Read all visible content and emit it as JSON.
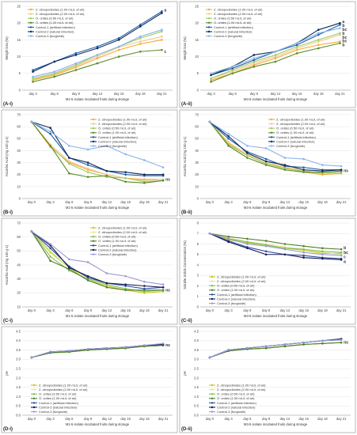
{
  "chart_data": [
    {
      "panel": "A-i",
      "type": "line",
      "xlabel": "M1-5 isolate incubated fruits during storage",
      "ylabel": "Weight loss (%)",
      "categories": [
        "day 3",
        "day 6",
        "day 9",
        "day 12",
        "day 15",
        "day 18",
        "day 21"
      ],
      "ylim": [
        0,
        25
      ],
      "yticks": [
        0,
        5,
        10,
        15,
        20,
        25
      ],
      "grid": true,
      "legend": "top-left",
      "series": [
        {
          "name": "Z. clinopodioides (1.00 mL/L of air)",
          "color": "#f7a832",
          "values": [
            3.0,
            4.5,
            6.8,
            9.5,
            12.0,
            13.8,
            15.0
          ]
        },
        {
          "name": "Z. clinopodioides (2.00 mL/L of air)",
          "color": "#f0c98b",
          "values": [
            3.2,
            4.8,
            7.2,
            10.0,
            12.8,
            14.5,
            16.0
          ]
        },
        {
          "name": "O. onites (0.50 mL/L of air)",
          "color": "#9ccc65",
          "values": [
            3.5,
            5.0,
            7.5,
            10.5,
            13.0,
            15.5,
            17.5
          ]
        },
        {
          "name": "O. onites (1.00 mL/L of air)",
          "color": "#5b8a2a",
          "values": [
            2.5,
            4.0,
            6.0,
            8.0,
            10.0,
            11.5,
            12.0
          ]
        },
        {
          "name": "Control-1 (artificial infection)",
          "color": "#1f5fa8",
          "values": [
            6.0,
            8.5,
            11.0,
            13.0,
            15.5,
            19.5,
            23.5
          ]
        },
        {
          "name": "Control-2 (natural infection)",
          "color": "#0d2a5c",
          "values": [
            5.5,
            8.5,
            10.5,
            12.5,
            15.0,
            19.0,
            23.0
          ]
        },
        {
          "name": "Control-3 (fungicide)",
          "color": "#8ab4e8",
          "values": [
            4.0,
            5.5,
            8.0,
            10.5,
            13.0,
            16.0,
            18.0
          ]
        }
      ],
      "letters": [
        "a",
        "c"
      ]
    },
    {
      "panel": "A-ii",
      "type": "line",
      "xlabel": "M3-5 isolate incubated fruits during storage",
      "ylabel": "Weight loss (%)",
      "categories": [
        "day 3",
        "day 6",
        "day 9",
        "day 12",
        "day 15",
        "day 18",
        "day 21"
      ],
      "ylim": [
        0,
        25
      ],
      "yticks": [
        0,
        5,
        10,
        15,
        20,
        25
      ],
      "grid": true,
      "legend": "top-left",
      "series": [
        {
          "name": "Z. clinopodioides (1.00 mL/L of air)",
          "color": "#f7a832",
          "values": [
            3.0,
            5.0,
            7.5,
            9.5,
            12.0,
            13.5,
            14.5
          ]
        },
        {
          "name": "Z. clinopodioides (2.00 mL/L of air)",
          "color": "#f0c98b",
          "values": [
            3.5,
            5.5,
            8.0,
            10.0,
            12.5,
            14.5,
            16.5
          ]
        },
        {
          "name": "O. onites (0.50 mL/L of air)",
          "color": "#9ccc65",
          "values": [
            3.5,
            6.0,
            8.5,
            10.5,
            13.0,
            15.0,
            17.0
          ]
        },
        {
          "name": "O. onites (1.00 mL/L of air)",
          "color": "#5b8a2a",
          "values": [
            2.5,
            5.0,
            7.0,
            8.5,
            11.0,
            12.5,
            14.0
          ]
        },
        {
          "name": "Control-1 (artificial infection)",
          "color": "#1f5fa8",
          "values": [
            4.5,
            6.5,
            9.0,
            11.5,
            13.5,
            16.5,
            19.5
          ]
        },
        {
          "name": "Control-2 (natural infection)",
          "color": "#0d2a5c",
          "values": [
            4.5,
            7.0,
            10.5,
            11.5,
            14.0,
            18.0,
            20.0
          ]
        },
        {
          "name": "Control-3 (fungicide)",
          "color": "#8ab4e8",
          "values": [
            5.0,
            7.0,
            9.5,
            11.5,
            14.0,
            17.0,
            18.5
          ]
        }
      ],
      "letters": [
        "a",
        "b",
        "bc",
        "b",
        "bc",
        "bc",
        "b"
      ]
    },
    {
      "panel": "B-i",
      "type": "line",
      "xlabel": "M1-5 isolate incubated fruits during storage",
      "ylabel": "Ascorbic Acid (mg 100 g-1)",
      "categories": [
        "day 0",
        "day 3",
        "day 6",
        "day 9",
        "day 12",
        "day 15",
        "day 18",
        "day 21"
      ],
      "ylim": [
        0,
        70
      ],
      "yticks": [
        0,
        10,
        20,
        30,
        40,
        50,
        60,
        70
      ],
      "grid": true,
      "legend": "top-right",
      "series": [
        {
          "name": "Z. clinopodioides (1.00 mL/L of air)",
          "color": "#f7a832",
          "values": [
            64,
            43,
            30,
            24,
            20,
            17,
            16,
            16
          ]
        },
        {
          "name": "Z. clinopodioides (2.00 mL/L of air)",
          "color": "#f0c98b",
          "values": [
            64,
            45,
            31,
            25,
            20,
            17,
            15,
            16
          ]
        },
        {
          "name": "O. onites (0.50 mL/L of air)",
          "color": "#9ccc65",
          "values": [
            64,
            44,
            29,
            22,
            18,
            17,
            14,
            15
          ]
        },
        {
          "name": "O. onites (1.00 mL/L of air)",
          "color": "#5b8a2a",
          "values": [
            64,
            44,
            21,
            18,
            19,
            14,
            13,
            15
          ]
        },
        {
          "name": "Control-1 (artificial infection)",
          "color": "#1f5fa8",
          "values": [
            64,
            54,
            34,
            28,
            23,
            20,
            19,
            19
          ]
        },
        {
          "name": "Control-2 (natural infection)",
          "color": "#0d2a5c",
          "values": [
            64,
            59,
            34,
            30,
            23,
            22,
            20,
            20
          ]
        },
        {
          "name": "Control-3 (fungicide)",
          "color": "#8ab4e8",
          "values": [
            64,
            56,
            44,
            41,
            44,
            37,
            32,
            26
          ]
        }
      ],
      "letters": [
        "ns"
      ]
    },
    {
      "panel": "B-ii",
      "type": "line",
      "xlabel": "M3-5 isolate incubated fruits during storage",
      "ylabel": "Ascorbic Acid (mg 100 g-1)",
      "categories": [
        "day 0",
        "day 3",
        "day 6",
        "day 9",
        "day 12",
        "day 15",
        "day 18",
        "day 21"
      ],
      "ylim": [
        0,
        70
      ],
      "yticks": [
        0,
        10,
        20,
        30,
        40,
        50,
        60,
        70
      ],
      "grid": true,
      "legend": "top-right",
      "series": [
        {
          "name": "Z. clinopodioides (1.00 mL/L of air)",
          "color": "#f7a832",
          "values": [
            64,
            46,
            36,
            29,
            26,
            22,
            20,
            21
          ]
        },
        {
          "name": "Z. clinopodioides (2.00 mL/L of air)",
          "color": "#f0c98b",
          "values": [
            64,
            47,
            37,
            30,
            27,
            23,
            21,
            22
          ]
        },
        {
          "name": "O. onites (0.50 mL/L of air)",
          "color": "#9ccc65",
          "values": [
            64,
            45,
            36,
            29,
            25,
            23,
            21,
            22
          ]
        },
        {
          "name": "O. onites (1.00 mL/L of air)",
          "color": "#5b8a2a",
          "values": [
            64,
            44,
            34,
            28,
            24,
            22,
            22,
            23
          ]
        },
        {
          "name": "Control-1 (artificial infection)",
          "color": "#1f5fa8",
          "values": [
            64,
            50,
            39,
            33,
            27,
            26,
            24,
            24
          ]
        },
        {
          "name": "Control-2 (natural infection)",
          "color": "#0d2a5c",
          "values": [
            64,
            52,
            38,
            31,
            28,
            24,
            23,
            24
          ]
        },
        {
          "name": "Control-3 (fungicide)",
          "color": "#8ab4e8",
          "values": [
            64,
            54,
            44,
            42,
            34,
            33,
            28,
            27
          ]
        }
      ],
      "letters": [
        "ns"
      ]
    },
    {
      "panel": "C-i",
      "type": "line",
      "xlabel": "M1-5 isolate incubated fruits during storage",
      "ylabel": "Ascorbic Acid (mg 100 g-1)",
      "categories": [
        "day 0",
        "day 3",
        "day 6",
        "day 9",
        "day 12",
        "day 15",
        "day 18",
        "day 21"
      ],
      "ylim": [
        10,
        70
      ],
      "yticks": [
        10,
        20,
        30,
        40,
        50,
        60,
        70
      ],
      "grid": true,
      "legend": "top-right",
      "series": [
        {
          "name": "Z. clinopodioides (1.00 mL/L of air)",
          "color": "#c8c81e",
          "values": [
            64,
            49,
            38,
            29,
            25,
            22,
            20,
            21
          ]
        },
        {
          "name": "Z. clinopodioides (2.00 mL/L of air)",
          "color": "#e6e68c",
          "values": [
            64,
            50,
            38,
            31,
            26,
            23,
            21,
            22
          ]
        },
        {
          "name": "O. onites (0.50 mL/L of air)",
          "color": "#7fbf5a",
          "values": [
            64,
            46,
            36,
            30,
            26,
            23,
            21,
            22
          ]
        },
        {
          "name": "O. onites (1.00 mL/L of air)",
          "color": "#4f7f2a",
          "values": [
            64,
            43,
            37,
            29,
            24,
            22,
            22,
            22
          ]
        },
        {
          "name": "Control-1 (artificial infection)",
          "color": "#2a4f9a",
          "values": [
            64,
            52,
            39,
            31,
            27,
            25,
            23,
            24
          ]
        },
        {
          "name": "Control-2 (natural infection)",
          "color": "#1a1a5a",
          "values": [
            64,
            54,
            38,
            32,
            27,
            26,
            25,
            24
          ]
        },
        {
          "name": "Control-3 (fungicide)",
          "color": "#9a9ad6",
          "values": [
            64,
            55,
            44,
            42,
            34,
            32,
            28,
            26
          ]
        }
      ],
      "letters": [
        "ns"
      ]
    },
    {
      "panel": "C-ii",
      "type": "line",
      "xlabel": "M3-5 isolate incubated fruits during storage",
      "ylabel": "Soluble Solids Concentration (%)",
      "categories": [
        "day 0",
        "day 3",
        "day 6",
        "day 9",
        "day 12",
        "day 15",
        "day 18",
        "day 21"
      ],
      "ylim": [
        0,
        8
      ],
      "yticks": [
        0,
        1,
        2,
        3,
        4,
        5,
        6,
        7,
        8
      ],
      "grid": true,
      "legend": "bottom-left",
      "series": [
        {
          "name": "Z. clinopodioides (1.00 mL/L of air)",
          "color": "#c8c81e",
          "values": [
            7.0,
            6.4,
            6.1,
            5.9,
            5.6,
            5.4,
            5.1,
            5.1
          ]
        },
        {
          "name": "Z. clinopodioides (2.00 mL/L of air)",
          "color": "#e6e68c",
          "values": [
            7.0,
            6.6,
            6.2,
            6.0,
            5.7,
            5.5,
            5.2,
            5.0
          ]
        },
        {
          "name": "O. onites (0.50 mL/L of air)",
          "color": "#7fbf5a",
          "values": [
            7.0,
            6.5,
            6.2,
            5.9,
            5.6,
            5.5,
            5.3,
            5.2
          ]
        },
        {
          "name": "O. onites (1.00 mL/L of air)",
          "color": "#4f7f2a",
          "values": [
            7.0,
            6.7,
            6.5,
            6.3,
            6.0,
            5.8,
            5.6,
            5.5
          ]
        },
        {
          "name": "Control-1 (artificial infection)",
          "color": "#2a4f9a",
          "values": [
            7.0,
            6.3,
            5.7,
            5.3,
            5.0,
            4.9,
            4.7,
            4.6
          ]
        },
        {
          "name": "Control-2 (natural infection)",
          "color": "#1a1a5a",
          "values": [
            7.0,
            6.2,
            5.6,
            5.0,
            5.0,
            4.7,
            4.6,
            4.5
          ]
        },
        {
          "name": "Control-3 (fungicide)",
          "color": "#9a9ad6",
          "values": [
            7.0,
            6.5,
            6.0,
            5.8,
            5.5,
            5.2,
            5.0,
            4.9
          ]
        }
      ],
      "letters": [
        "b",
        "bc",
        "c",
        "a"
      ]
    },
    {
      "panel": "D-i",
      "type": "line",
      "xlabel": "M1-5 isolate incubated fruits during storage",
      "ylabel": "pH",
      "categories": [
        "day 0",
        "day 3",
        "day 6",
        "day 9",
        "day 12",
        "day 15",
        "day 18",
        "day 21"
      ],
      "ylim": [
        0,
        4.5
      ],
      "yticks": [
        0,
        0.5,
        1.0,
        1.5,
        2.0,
        2.5,
        3.0,
        3.5,
        4.0,
        4.5
      ],
      "grid": true,
      "legend": "bottom-left",
      "series": [
        {
          "name": "Z. clinopodioides (1.00 mL/L of air)",
          "color": "#c8c81e",
          "values": [
            3.1,
            3.35,
            3.4,
            3.5,
            3.55,
            3.6,
            3.7,
            3.75
          ]
        },
        {
          "name": "Z. clinopodioides (2.00 mL/L of air)",
          "color": "#e6e68c",
          "values": [
            3.1,
            3.35,
            3.4,
            3.5,
            3.55,
            3.6,
            3.7,
            3.75
          ]
        },
        {
          "name": "O. onites (0.50 mL/L of air)",
          "color": "#7fbf5a",
          "values": [
            3.1,
            3.35,
            3.4,
            3.5,
            3.55,
            3.6,
            3.7,
            3.75
          ]
        },
        {
          "name": "O. onites (1.00 mL/L of air)",
          "color": "#4f7f2a",
          "values": [
            3.1,
            3.35,
            3.4,
            3.5,
            3.55,
            3.6,
            3.7,
            3.75
          ]
        },
        {
          "name": "Control-1 (artificial infection)",
          "color": "#2a4f9a",
          "values": [
            3.1,
            3.4,
            3.45,
            3.55,
            3.6,
            3.65,
            3.75,
            3.8
          ]
        },
        {
          "name": "Control-2 (natural infection)",
          "color": "#1a1a5a",
          "values": [
            3.1,
            3.4,
            3.45,
            3.55,
            3.6,
            3.65,
            3.75,
            3.8
          ]
        },
        {
          "name": "Control-3 (fungicide)",
          "color": "#9a9ad6",
          "values": [
            3.1,
            3.4,
            3.45,
            3.55,
            3.6,
            3.65,
            3.75,
            3.85
          ]
        }
      ],
      "letters": [
        "ns"
      ]
    },
    {
      "panel": "D-ii",
      "type": "line",
      "xlabel": "M3-5 isolate incubated fruits during storage",
      "ylabel": "pH",
      "categories": [
        "day 0",
        "day 3",
        "day 6",
        "day 9",
        "day 12",
        "day 15",
        "day 18",
        "day 21"
      ],
      "ylim": [
        0,
        4.5
      ],
      "yticks": [
        0,
        0.5,
        1.0,
        1.5,
        2.0,
        2.5,
        3.0,
        3.5,
        4.0,
        4.5
      ],
      "grid": true,
      "legend": "bottom-left",
      "series": [
        {
          "name": "Z. clinopodioides (1.00 mL/L of air)",
          "color": "#c8c81e",
          "values": [
            3.1,
            3.45,
            3.55,
            3.6,
            3.7,
            3.8,
            3.85,
            3.9
          ]
        },
        {
          "name": "Z. clinopodioides (2.00 mL/L of air)",
          "color": "#e6e68c",
          "values": [
            3.1,
            3.45,
            3.55,
            3.6,
            3.7,
            3.8,
            3.85,
            3.9
          ]
        },
        {
          "name": "O. onites (0.50 mL/L of air)",
          "color": "#7fbf5a",
          "values": [
            3.1,
            3.45,
            3.55,
            3.6,
            3.7,
            3.8,
            3.85,
            3.9
          ]
        },
        {
          "name": "O. onites (1.00 mL/L of air)",
          "color": "#4f7f2a",
          "values": [
            3.1,
            3.45,
            3.55,
            3.6,
            3.7,
            3.8,
            3.85,
            3.9
          ]
        },
        {
          "name": "Control-1 (artificial infection)",
          "color": "#2a4f9a",
          "values": [
            3.1,
            3.5,
            3.6,
            3.7,
            3.8,
            3.9,
            4.0,
            4.05
          ]
        },
        {
          "name": "Control-2 (natural infection)",
          "color": "#1a1a5a",
          "values": [
            3.1,
            3.5,
            3.6,
            3.7,
            3.8,
            3.9,
            4.0,
            4.1
          ]
        },
        {
          "name": "Control-3 (fungicide)",
          "color": "#9a9ad6",
          "values": [
            3.1,
            3.5,
            3.6,
            3.7,
            3.8,
            3.9,
            4.0,
            4.05
          ]
        }
      ],
      "letters": [
        "ns"
      ]
    }
  ]
}
